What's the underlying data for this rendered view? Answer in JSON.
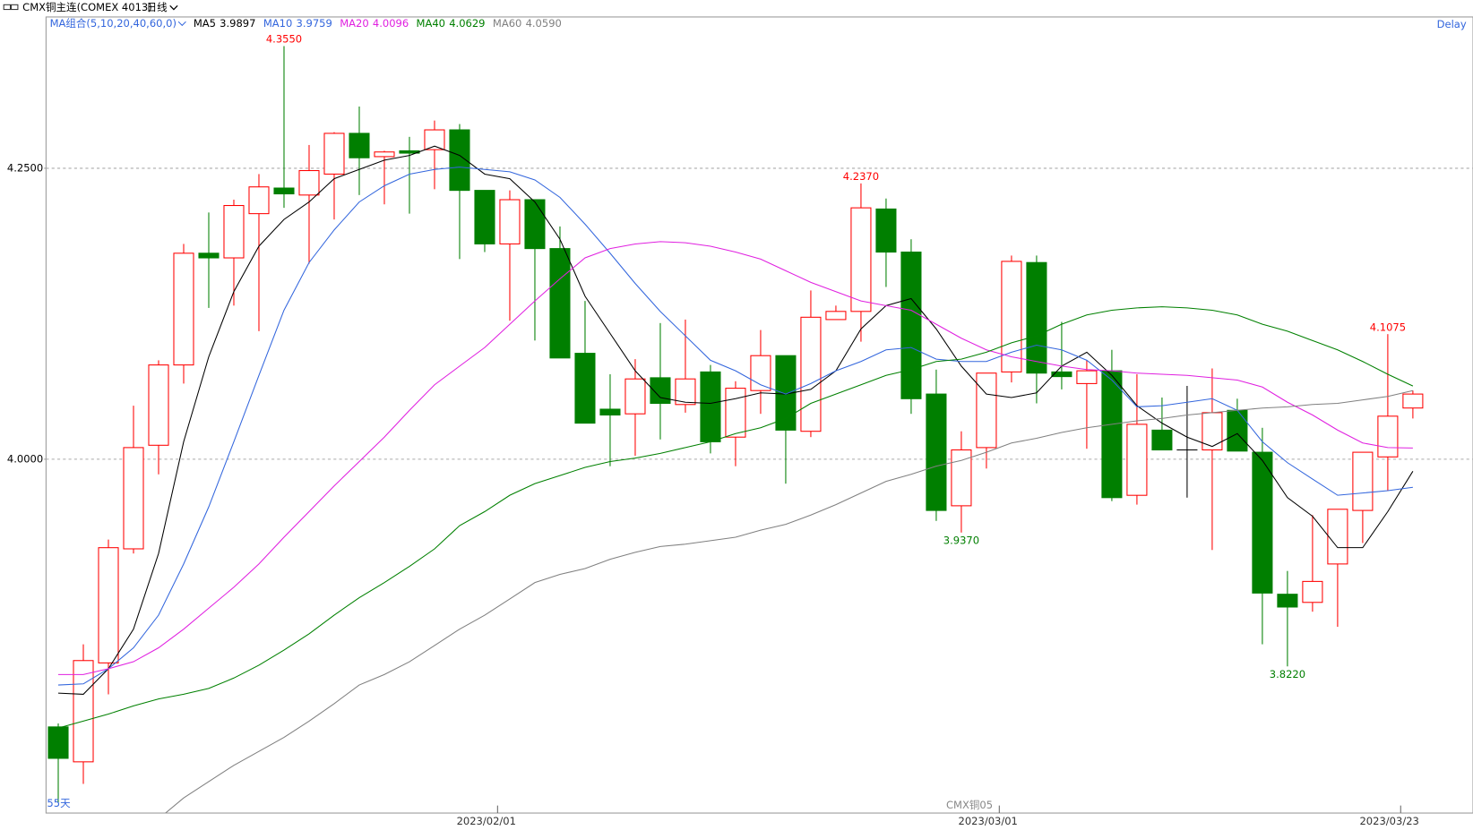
{
  "header": {
    "symbol": "CMX铜主连(COMEX 4013)",
    "period": "日线",
    "ma_group": "MA组合(5,10,20,40,60,0)",
    "delay": "Delay"
  },
  "chart_data": {
    "type": "candlestick",
    "categories": [
      null,
      null,
      null,
      null,
      null,
      null,
      null,
      null,
      null,
      null,
      null,
      null,
      null,
      null,
      null,
      null,
      null,
      null,
      "2023/02/01",
      null,
      null,
      null,
      null,
      null,
      null,
      null,
      null,
      null,
      null,
      null,
      null,
      null,
      null,
      null,
      null,
      null,
      null,
      null,
      "2023/03/01",
      null,
      null,
      null,
      null,
      null,
      null,
      null,
      null,
      null,
      null,
      null,
      null,
      null,
      null,
      null,
      "2023/03/23"
    ],
    "open": [
      3.77,
      3.74,
      3.825,
      3.923,
      4.012,
      4.081,
      4.177,
      4.173,
      4.211,
      4.233,
      4.227,
      4.245,
      4.28,
      4.26,
      4.265,
      4.266,
      4.283,
      4.231,
      4.185,
      4.223,
      4.181,
      4.091,
      4.043,
      4.039,
      4.07,
      4.047,
      4.075,
      4.019,
      4.059,
      4.089,
      4.024,
      4.12,
      4.127,
      4.215,
      4.178,
      4.056,
      3.96,
      4.01,
      4.075,
      4.169,
      4.075,
      4.065,
      4.076,
      3.969,
      4.025,
      4.008,
      4.008,
      4.042,
      4.006,
      3.884,
      3.877,
      3.91,
      3.956,
      4.002,
      4.044
    ],
    "high": [
      3.773,
      3.841,
      3.931,
      4.046,
      4.085,
      4.185,
      4.212,
      4.223,
      4.245,
      4.355,
      4.27,
      4.281,
      4.303,
      4.265,
      4.277,
      4.291,
      4.288,
      4.231,
      4.231,
      4.223,
      4.2,
      4.136,
      4.073,
      4.086,
      4.117,
      4.12,
      4.081,
      4.067,
      4.111,
      4.089,
      4.145,
      4.132,
      4.237,
      4.224,
      4.189,
      4.077,
      4.024,
      4.074,
      4.175,
      4.175,
      4.118,
      4.085,
      4.094,
      4.073,
      4.053,
      4.063,
      4.078,
      4.052,
      4.027,
      3.904,
      3.952,
      3.957,
      4.006,
      4.1075,
      4.059
    ],
    "low": [
      3.705,
      3.721,
      3.798,
      3.919,
      3.987,
      4.065,
      4.13,
      4.132,
      4.11,
      4.216,
      4.168,
      4.206,
      4.227,
      4.219,
      4.211,
      4.232,
      4.172,
      4.178,
      4.119,
      4.102,
      4.087,
      4.031,
      3.994,
      4.003,
      4.017,
      4.04,
      4.005,
      3.994,
      4.039,
      3.979,
      4.019,
      4.12,
      4.101,
      4.148,
      4.039,
      3.947,
      3.937,
      3.992,
      4.066,
      4.048,
      4.06,
      4.009,
      3.964,
      3.961,
      4.008,
      3.967,
      3.922,
      4.007,
      3.841,
      3.822,
      3.869,
      3.856,
      3.928,
      3.973,
      4.035
    ],
    "close": [
      3.743,
      3.827,
      3.924,
      4.01,
      4.081,
      4.177,
      4.173,
      4.218,
      4.234,
      4.228,
      4.248,
      4.28,
      4.259,
      4.264,
      4.263,
      4.283,
      4.231,
      4.185,
      4.223,
      4.181,
      4.087,
      4.031,
      4.038,
      4.069,
      4.048,
      4.069,
      4.015,
      4.061,
      4.089,
      4.025,
      4.122,
      4.127,
      4.216,
      4.178,
      4.052,
      3.956,
      4.008,
      4.074,
      4.17,
      4.074,
      4.071,
      4.076,
      3.967,
      4.03,
      4.008,
      4.008,
      4.04,
      4.007,
      3.885,
      3.873,
      3.895,
      3.957,
      4.006,
      4.037,
      4.056
    ],
    "high_labels": [
      null,
      null,
      null,
      null,
      null,
      null,
      null,
      null,
      null,
      "4.3550",
      null,
      null,
      null,
      null,
      null,
      null,
      null,
      null,
      null,
      null,
      null,
      null,
      null,
      null,
      null,
      null,
      null,
      null,
      null,
      null,
      null,
      null,
      "4.2370",
      null,
      null,
      null,
      null,
      null,
      null,
      null,
      null,
      null,
      null,
      null,
      null,
      null,
      null,
      null,
      null,
      null,
      null,
      null,
      null,
      "4.1075",
      null
    ],
    "low_labels": [
      null,
      null,
      null,
      null,
      null,
      null,
      null,
      null,
      null,
      null,
      null,
      null,
      null,
      null,
      null,
      null,
      null,
      null,
      null,
      null,
      null,
      null,
      null,
      null,
      null,
      null,
      null,
      null,
      null,
      null,
      null,
      null,
      null,
      null,
      null,
      null,
      "3.9370",
      null,
      null,
      null,
      null,
      null,
      null,
      null,
      null,
      null,
      null,
      null,
      null,
      "3.8220",
      null,
      null,
      null,
      null,
      null
    ],
    "up_color": "#ff0000",
    "down_color": "#007f00",
    "flat_color": "#000000",
    "ylim": [
      3.696,
      4.38
    ],
    "yticks": [
      {
        "value": 4.25,
        "label": "4.2500"
      },
      {
        "value": 4,
        "label": "4.0000"
      }
    ],
    "grid": true,
    "range_label": "55天",
    "contract_label": "CMX铜05",
    "series": [
      {
        "name": "MA5",
        "color": "#000000",
        "value_label": "3.9897",
        "values": [
          3.799,
          3.798,
          3.82,
          3.854,
          3.919,
          4.015,
          4.088,
          4.144,
          4.183,
          4.206,
          4.221,
          4.241,
          4.249,
          4.257,
          4.261,
          4.269,
          4.261,
          4.245,
          4.241,
          4.221,
          4.189,
          4.14,
          4.108,
          4.076,
          4.053,
          4.049,
          4.048,
          4.052,
          4.057,
          4.056,
          4.06,
          4.076,
          4.112,
          4.132,
          4.138,
          4.112,
          4.08,
          4.056,
          4.053,
          4.057,
          4.08,
          4.092,
          4.072,
          4.046,
          4.031,
          4.019,
          4.011,
          4.022,
          3.999,
          3.967,
          3.951,
          3.924,
          3.924,
          3.955,
          3.9897
        ]
      },
      {
        "name": "MA10",
        "color": "#3366dd",
        "value_label": "3.9759",
        "values": [
          3.806,
          3.807,
          3.82,
          3.838,
          3.866,
          3.91,
          3.959,
          4.015,
          4.072,
          4.128,
          4.169,
          4.197,
          4.221,
          4.235,
          4.245,
          4.249,
          4.251,
          4.249,
          4.247,
          4.24,
          4.225,
          4.202,
          4.177,
          4.151,
          4.127,
          4.106,
          4.085,
          4.076,
          4.064,
          4.056,
          4.065,
          4.076,
          4.084,
          4.094,
          4.096,
          4.086,
          4.084,
          4.084,
          4.092,
          4.098,
          4.094,
          4.085,
          4.068,
          4.045,
          4.046,
          4.049,
          4.052,
          4.042,
          4.015,
          3.997,
          3.983,
          3.969,
          3.971,
          3.973,
          3.9759
        ]
      },
      {
        "name": "MA20",
        "color": "#e020e0",
        "value_label": "4.0096",
        "values": [
          3.815,
          3.815,
          3.82,
          3.826,
          3.838,
          3.854,
          3.872,
          3.89,
          3.91,
          3.933,
          3.955,
          3.977,
          3.998,
          4.019,
          4.042,
          4.064,
          4.08,
          4.096,
          4.116,
          4.136,
          4.155,
          4.173,
          4.181,
          4.185,
          4.187,
          4.186,
          4.183,
          4.178,
          4.172,
          4.162,
          4.152,
          4.144,
          4.136,
          4.132,
          4.128,
          4.116,
          4.104,
          4.094,
          4.088,
          4.084,
          4.08,
          4.077,
          4.076,
          4.074,
          4.073,
          4.072,
          4.07,
          4.068,
          4.062,
          4.049,
          4.038,
          4.025,
          4.014,
          4.01,
          4.0096
        ]
      },
      {
        "name": "MA40",
        "color": "#008000",
        "value_label": "4.0629",
        "values": [
          3.769,
          3.775,
          3.781,
          3.788,
          3.794,
          3.798,
          3.803,
          3.812,
          3.823,
          3.836,
          3.85,
          3.866,
          3.881,
          3.894,
          3.908,
          3.923,
          3.943,
          3.955,
          3.969,
          3.979,
          3.986,
          3.993,
          3.998,
          4.001,
          4.005,
          4.01,
          4.015,
          4.022,
          4.027,
          4.035,
          4.048,
          4.056,
          4.064,
          4.072,
          4.077,
          4.084,
          4.086,
          4.092,
          4.1,
          4.106,
          4.116,
          4.124,
          4.128,
          4.13,
          4.131,
          4.13,
          4.128,
          4.124,
          4.116,
          4.11,
          4.102,
          4.094,
          4.084,
          4.073,
          4.0629
        ]
      },
      {
        "name": "MA60",
        "color": "#808080",
        "value_label": "4.0590",
        "values": [
          null,
          null,
          null,
          null,
          3.691,
          3.709,
          3.723,
          3.737,
          3.749,
          3.761,
          3.775,
          3.79,
          3.806,
          3.815,
          3.826,
          3.84,
          3.854,
          3.866,
          3.88,
          3.894,
          3.901,
          3.906,
          3.914,
          3.92,
          3.925,
          3.927,
          3.93,
          3.933,
          3.939,
          3.944,
          3.952,
          3.961,
          3.971,
          3.981,
          3.987,
          3.994,
          3.999,
          4.006,
          4.014,
          4.018,
          4.023,
          4.027,
          4.03,
          4.033,
          4.035,
          4.038,
          4.04,
          4.042,
          4.044,
          4.045,
          4.047,
          4.048,
          4.051,
          4.054,
          4.059
        ]
      }
    ]
  }
}
